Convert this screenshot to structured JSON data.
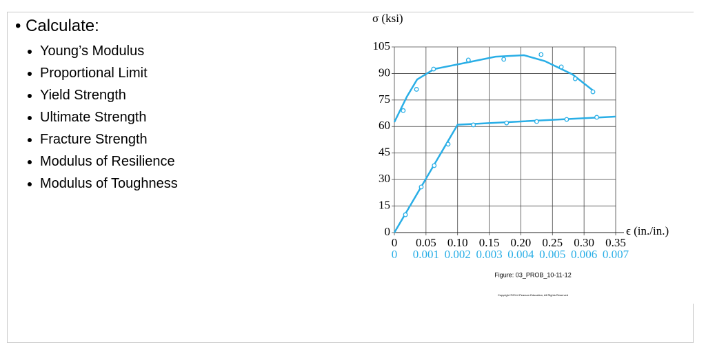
{
  "bullets": {
    "heading": "Calculate:",
    "items": [
      "Young’s Modulus",
      "Proportional Limit",
      "Yield Strength",
      "Ultimate Strength",
      "Fracture Strength",
      "Modulus of Resilience",
      "Modulus of Toughness"
    ]
  },
  "chart_data": {
    "type": "line",
    "y_label": "σ (ksi)",
    "x_label": "ϵ (in./in.)",
    "caption": "Figure: 03_PROB_10-11-12",
    "copyright": "Copyright ©2014 Pearson Education, All Rights Reserved",
    "xlim": [
      0,
      0.35
    ],
    "xticks": [
      0,
      0.05,
      {
        "value": 0.1,
        "label": "0.10"
      },
      0.15,
      {
        "value": 0.2,
        "label": "0.20"
      },
      0.25,
      {
        "value": 0.3,
        "label": "0.30"
      },
      0.35
    ],
    "x2lim": [
      0,
      0.007
    ],
    "x2ticks": [
      0,
      0.001,
      0.002,
      0.003,
      0.004,
      0.005,
      0.006,
      0.007
    ],
    "x2color": "#29aee6",
    "ylim": [
      0,
      105
    ],
    "yticks": [
      0,
      15,
      30,
      45,
      60,
      75,
      90,
      105
    ],
    "grid": true,
    "series": [
      {
        "color": "#29aee6",
        "axis": "x",
        "style": "line",
        "x": [
          0,
          0.02,
          0.036,
          0.063,
          0.118,
          0.16,
          0.205,
          0.238,
          0.282,
          0.314
        ],
        "values": [
          62.5,
          77,
          86.6,
          92.5,
          96.4,
          99.5,
          100.3,
          97,
          89.4,
          80.4
        ]
      },
      {
        "color": "#29aee6",
        "axis": "x",
        "style": "markers",
        "x": [
          0.014,
          0.035,
          0.062,
          0.117,
          0.173,
          0.232,
          0.264,
          0.286,
          0.314
        ],
        "values": [
          69,
          81,
          92.5,
          97.6,
          98,
          100.7,
          93.7,
          87,
          79.6
        ]
      },
      {
        "color": "#29aee6",
        "axis": "x2",
        "style": "line",
        "x": [
          0,
          0.002,
          0.007
        ],
        "values": [
          0,
          61,
          65.6
        ]
      },
      {
        "color": "#29aee6",
        "axis": "x2",
        "style": "markers",
        "x": [
          0.00035,
          0.00085,
          0.00126,
          0.0017,
          0.0025,
          0.00355,
          0.0045,
          0.00545,
          0.0064
        ],
        "values": [
          10.1,
          25.8,
          37.9,
          50,
          60.9,
          62,
          62.8,
          64,
          65.2
        ]
      }
    ]
  }
}
